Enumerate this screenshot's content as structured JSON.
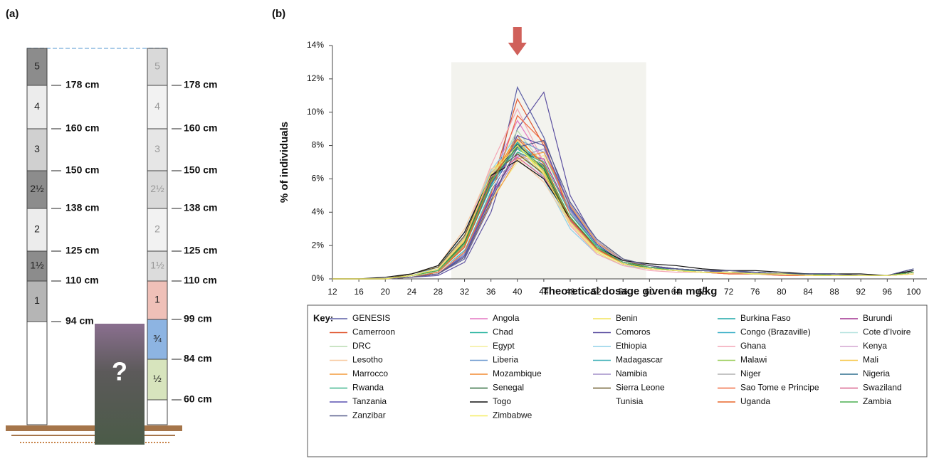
{
  "panel_a": {
    "label": "(a)",
    "left_pole": {
      "segments": [
        "5",
        "4",
        "3",
        "2½",
        "2",
        "1½",
        "1"
      ],
      "heights": [
        "178 cm",
        "160 cm",
        "150 cm",
        "138 cm",
        "125 cm",
        "110 cm",
        "94 cm"
      ]
    },
    "right_pole": {
      "segments": [
        "5",
        "4",
        "3",
        "2½",
        "2",
        "1½",
        "1",
        "¾",
        "½"
      ],
      "heights": [
        "178 cm",
        "160 cm",
        "150 cm",
        "138 cm",
        "125 cm",
        "110 cm",
        "99 cm",
        "84 cm",
        "60 cm"
      ]
    },
    "photo_label": "?"
  },
  "chart_data": {
    "type": "line",
    "panel_label": "(b)",
    "x_label": "Theoretical dosage given in mg/kg",
    "y_label": "% of individuals",
    "legend_title": "Key:",
    "x": [
      12,
      16,
      20,
      24,
      28,
      32,
      36,
      40,
      44,
      48,
      52,
      56,
      60,
      64,
      68,
      72,
      76,
      80,
      84,
      88,
      92,
      96,
      100
    ],
    "xlim": [
      12,
      102
    ],
    "xticks": [
      12,
      16,
      20,
      24,
      28,
      32,
      36,
      40,
      44,
      48,
      52,
      56,
      60,
      64,
      68,
      72,
      76,
      80,
      84,
      88,
      92,
      96,
      100
    ],
    "ylim": [
      0,
      14
    ],
    "yticks": [
      {
        "value": 0,
        "label": "0%"
      },
      {
        "value": 2,
        "label": "2%"
      },
      {
        "value": 4,
        "label": "4%"
      },
      {
        "value": 6,
        "label": "6%"
      },
      {
        "value": 8,
        "label": "8%"
      },
      {
        "value": 10,
        "label": "10%"
      },
      {
        "value": 12,
        "label": "12%"
      },
      {
        "value": 14,
        "label": "14%"
      }
    ],
    "shaded": {
      "x": [
        30,
        59.5
      ],
      "y": [
        0,
        13
      ],
      "color": "#f3f3ee"
    },
    "arrow": {
      "x": 40,
      "color": "#d0605a"
    },
    "series": [
      {
        "name": "GENESIS",
        "color": "#5b5ea6",
        "values": [
          0,
          0,
          0,
          0.1,
          0.3,
          1.2,
          4.5,
          11.5,
          8.5,
          4.2,
          2.1,
          1.0,
          0.7,
          0.6,
          0.5,
          0.4,
          0.4,
          0.3,
          0.3,
          0.3,
          0.2,
          0.2,
          0.6
        ]
      },
      {
        "name": "Angola",
        "color": "#e377c2",
        "values": [
          0,
          0,
          0,
          0.1,
          0.4,
          2.0,
          6.0,
          9.5,
          7.0,
          3.5,
          1.8,
          0.9,
          0.6,
          0.5,
          0.4,
          0.3,
          0.3,
          0.3,
          0.2,
          0.2,
          0.2,
          0.2,
          0.4
        ]
      },
      {
        "name": "Benin",
        "color": "#f2e35a",
        "values": [
          0,
          0,
          0,
          0.2,
          0.6,
          2.5,
          6.5,
          8.0,
          6.2,
          3.2,
          1.6,
          0.8,
          0.6,
          0.5,
          0.4,
          0.4,
          0.3,
          0.3,
          0.2,
          0.2,
          0.2,
          0.2,
          0.3
        ]
      },
      {
        "name": "Burkina Faso",
        "color": "#1fa7a8",
        "values": [
          0,
          0,
          0,
          0.1,
          0.5,
          2.2,
          6.0,
          8.2,
          6.8,
          3.6,
          1.8,
          0.9,
          0.7,
          0.5,
          0.4,
          0.4,
          0.3,
          0.3,
          0.3,
          0.2,
          0.2,
          0.2,
          0.4
        ]
      },
      {
        "name": "Burundi",
        "color": "#a0308f",
        "values": [
          0,
          0,
          0,
          0.1,
          0.3,
          1.5,
          5.0,
          7.5,
          7.2,
          4.0,
          2.0,
          1.0,
          0.7,
          0.6,
          0.5,
          0.4,
          0.3,
          0.3,
          0.3,
          0.2,
          0.2,
          0.2,
          0.5
        ]
      },
      {
        "name": "Camerroon",
        "color": "#e0552d",
        "values": [
          0,
          0,
          0,
          0.1,
          0.4,
          1.8,
          5.5,
          10.8,
          8.0,
          3.8,
          1.9,
          0.9,
          0.6,
          0.5,
          0.4,
          0.3,
          0.3,
          0.3,
          0.2,
          0.2,
          0.2,
          0.2,
          0.4
        ]
      },
      {
        "name": "Chad",
        "color": "#2bb5a0",
        "values": [
          0,
          0,
          0,
          0.2,
          0.5,
          2.0,
          5.8,
          7.8,
          6.6,
          3.8,
          2.0,
          1.0,
          0.7,
          0.6,
          0.5,
          0.4,
          0.3,
          0.3,
          0.3,
          0.2,
          0.2,
          0.2,
          0.4
        ]
      },
      {
        "name": "Comoros",
        "color": "#5b4fa0",
        "values": [
          0,
          0,
          0,
          0.1,
          0.2,
          1.0,
          4.0,
          9.0,
          11.2,
          5.0,
          2.2,
          1.1,
          0.8,
          0.6,
          0.5,
          0.5,
          0.4,
          0.3,
          0.3,
          0.3,
          0.2,
          0.2,
          0.5
        ]
      },
      {
        "name": "Congo (Brazaville)",
        "color": "#3cb0c8",
        "values": [
          0,
          0,
          0,
          0.1,
          0.4,
          1.8,
          5.6,
          8.0,
          6.9,
          3.7,
          1.9,
          0.9,
          0.7,
          0.5,
          0.4,
          0.4,
          0.3,
          0.3,
          0.2,
          0.2,
          0.2,
          0.2,
          0.4
        ]
      },
      {
        "name": "Cote d’Ivoire",
        "color": "#b7e3e0",
        "values": [
          0,
          0,
          0,
          0.2,
          0.6,
          2.4,
          6.2,
          7.6,
          6.0,
          3.4,
          1.7,
          0.9,
          0.6,
          0.5,
          0.4,
          0.4,
          0.3,
          0.3,
          0.2,
          0.2,
          0.2,
          0.2,
          0.3
        ]
      },
      {
        "name": "DRC",
        "color": "#b9dcb0",
        "values": [
          0,
          0,
          0,
          0.1,
          0.5,
          2.1,
          6.0,
          8.9,
          6.8,
          3.5,
          1.8,
          0.9,
          0.6,
          0.5,
          0.4,
          0.4,
          0.3,
          0.3,
          0.2,
          0.2,
          0.2,
          0.2,
          0.3
        ]
      },
      {
        "name": "Egypt",
        "color": "#f3ee9a",
        "values": [
          0,
          0,
          0,
          0.1,
          0.3,
          1.4,
          4.8,
          7.0,
          7.4,
          4.3,
          2.3,
          1.2,
          0.8,
          0.6,
          0.5,
          0.4,
          0.4,
          0.3,
          0.3,
          0.3,
          0.2,
          0.2,
          0.5
        ]
      },
      {
        "name": "Ethiopia",
        "color": "#8fd0e8",
        "values": [
          0,
          0,
          0,
          0.2,
          0.7,
          2.8,
          6.5,
          8.6,
          6.0,
          3.0,
          1.5,
          0.8,
          0.6,
          0.5,
          0.4,
          0.3,
          0.3,
          0.2,
          0.2,
          0.2,
          0.2,
          0.2,
          0.3
        ]
      },
      {
        "name": "Ghana",
        "color": "#f4a6b5",
        "values": [
          0,
          0,
          0,
          0.2,
          0.6,
          2.6,
          6.8,
          10.2,
          7.0,
          3.2,
          1.5,
          0.8,
          0.5,
          0.4,
          0.4,
          0.3,
          0.3,
          0.2,
          0.2,
          0.2,
          0.2,
          0.2,
          0.3
        ]
      },
      {
        "name": "Kenya",
        "color": "#d3a6d0",
        "values": [
          0,
          0,
          0,
          0.1,
          0.4,
          1.9,
          5.4,
          7.4,
          6.9,
          4.0,
          2.1,
          1.0,
          0.7,
          0.6,
          0.5,
          0.4,
          0.3,
          0.3,
          0.3,
          0.2,
          0.2,
          0.2,
          0.4
        ]
      },
      {
        "name": "Lesotho",
        "color": "#f8c9a0",
        "values": [
          0,
          0,
          0,
          0.3,
          0.8,
          3.0,
          6.6,
          7.2,
          5.8,
          3.3,
          1.7,
          0.9,
          0.6,
          0.5,
          0.4,
          0.4,
          0.3,
          0.3,
          0.2,
          0.2,
          0.2,
          0.2,
          0.3
        ]
      },
      {
        "name": "Liberia",
        "color": "#6f9bd0",
        "values": [
          0,
          0,
          0,
          0.1,
          0.3,
          1.5,
          5.2,
          8.4,
          7.6,
          4.1,
          2.0,
          1.0,
          0.7,
          0.5,
          0.5,
          0.4,
          0.3,
          0.3,
          0.3,
          0.2,
          0.2,
          0.2,
          0.5
        ]
      },
      {
        "name": "Madagascar",
        "color": "#40b0b8",
        "values": [
          0,
          0,
          0,
          0.1,
          0.4,
          1.7,
          5.3,
          8.1,
          7.0,
          3.9,
          1.9,
          1.0,
          0.7,
          0.5,
          0.4,
          0.4,
          0.3,
          0.3,
          0.2,
          0.2,
          0.2,
          0.2,
          0.4
        ]
      },
      {
        "name": "Malawi",
        "color": "#9acd5a",
        "values": [
          0,
          0,
          0,
          0.2,
          0.5,
          2.2,
          6.1,
          7.9,
          6.5,
          3.6,
          1.8,
          0.9,
          0.6,
          0.5,
          0.4,
          0.4,
          0.3,
          0.3,
          0.2,
          0.2,
          0.2,
          0.2,
          0.3
        ]
      },
      {
        "name": "Mali",
        "color": "#f7c74a",
        "values": [
          0,
          0,
          0,
          0.2,
          0.5,
          2.3,
          6.3,
          8.3,
          6.4,
          3.4,
          1.7,
          0.9,
          0.6,
          0.5,
          0.4,
          0.3,
          0.3,
          0.3,
          0.2,
          0.2,
          0.2,
          0.2,
          0.3
        ]
      },
      {
        "name": "Marrocco",
        "color": "#f39a3a",
        "values": [
          0,
          0,
          0,
          0.1,
          0.3,
          1.3,
          4.6,
          7.2,
          7.6,
          4.4,
          2.2,
          1.1,
          0.8,
          0.6,
          0.5,
          0.4,
          0.4,
          0.3,
          0.3,
          0.2,
          0.2,
          0.2,
          0.5
        ]
      },
      {
        "name": "Mozambique",
        "color": "#f28a30",
        "values": [
          0,
          0,
          0,
          0.1,
          0.4,
          2.0,
          5.9,
          8.6,
          6.7,
          3.5,
          1.8,
          0.9,
          0.6,
          0.5,
          0.4,
          0.4,
          0.3,
          0.3,
          0.2,
          0.2,
          0.2,
          0.2,
          0.4
        ]
      },
      {
        "name": "Namibia",
        "color": "#a28fc8",
        "values": [
          0,
          0,
          0,
          0.1,
          0.3,
          1.4,
          4.9,
          7.3,
          7.8,
          4.5,
          2.3,
          1.1,
          0.8,
          0.6,
          0.5,
          0.4,
          0.4,
          0.3,
          0.3,
          0.3,
          0.2,
          0.2,
          0.5
        ]
      },
      {
        "name": "Niger",
        "color": "#b0b0b0",
        "values": [
          0,
          0,
          0,
          0.2,
          0.6,
          2.5,
          6.4,
          7.7,
          6.2,
          3.4,
          1.7,
          0.9,
          0.6,
          0.5,
          0.4,
          0.4,
          0.3,
          0.3,
          0.2,
          0.2,
          0.2,
          0.2,
          0.3
        ]
      },
      {
        "name": "Nigeria",
        "color": "#2e6f8e",
        "values": [
          0,
          0,
          0,
          0.1,
          0.4,
          1.9,
          5.7,
          8.0,
          6.8,
          3.7,
          1.9,
          1.0,
          0.7,
          0.6,
          0.5,
          0.4,
          0.4,
          0.3,
          0.3,
          0.2,
          0.2,
          0.2,
          0.4
        ]
      },
      {
        "name": "Rwanda",
        "color": "#3cb48a",
        "values": [
          0,
          0,
          0,
          0.1,
          0.4,
          1.8,
          5.5,
          7.6,
          7.0,
          3.9,
          2.0,
          1.0,
          0.7,
          0.5,
          0.5,
          0.4,
          0.3,
          0.3,
          0.3,
          0.2,
          0.2,
          0.2,
          0.4
        ]
      },
      {
        "name": "Senegal",
        "color": "#2e6a3a",
        "values": [
          0,
          0,
          0,
          0.2,
          0.5,
          2.2,
          6.0,
          8.1,
          6.6,
          3.5,
          1.8,
          0.9,
          0.7,
          0.6,
          0.5,
          0.4,
          0.4,
          0.3,
          0.3,
          0.2,
          0.2,
          0.2,
          0.4
        ]
      },
      {
        "name": "Sierra Leone",
        "color": "#6b5a2a",
        "values": [
          0,
          0,
          0,
          0.3,
          0.7,
          2.6,
          6.2,
          7.5,
          6.3,
          3.6,
          1.8,
          1.0,
          0.8,
          0.6,
          0.5,
          0.4,
          0.4,
          0.3,
          0.3,
          0.2,
          0.2,
          0.2,
          0.4
        ]
      },
      {
        "name": "Sao Tome e Principe",
        "color": "#f06a40",
        "values": [
          0,
          0,
          0,
          0.1,
          0.3,
          1.6,
          5.1,
          9.8,
          8.2,
          3.8,
          1.8,
          0.9,
          0.6,
          0.5,
          0.4,
          0.3,
          0.3,
          0.2,
          0.2,
          0.2,
          0.2,
          0.2,
          0.3
        ]
      },
      {
        "name": "Swaziland",
        "color": "#d8608a",
        "values": [
          0,
          0,
          0,
          0.2,
          0.6,
          2.4,
          6.1,
          7.3,
          6.1,
          3.5,
          1.8,
          0.9,
          0.6,
          0.5,
          0.4,
          0.4,
          0.3,
          0.3,
          0.2,
          0.2,
          0.2,
          0.2,
          0.3
        ]
      },
      {
        "name": "Tanzania",
        "color": "#5850b0",
        "values": [
          0,
          0,
          0,
          0.1,
          0.3,
          1.4,
          4.9,
          8.6,
          8.0,
          4.3,
          2.1,
          1.0,
          0.7,
          0.6,
          0.5,
          0.4,
          0.4,
          0.3,
          0.3,
          0.3,
          0.2,
          0.2,
          0.5
        ]
      },
      {
        "name": "Togo",
        "color": "#111111",
        "values": [
          0,
          0,
          0.1,
          0.3,
          0.8,
          2.8,
          6.2,
          7.1,
          6.0,
          3.6,
          1.9,
          1.1,
          0.9,
          0.8,
          0.6,
          0.5,
          0.5,
          0.4,
          0.3,
          0.3,
          0.3,
          0.2,
          0.5
        ]
      },
      {
        "name": "Tunisia",
        "color": "#ffffff",
        "values": [
          0,
          0,
          0,
          0.1,
          0.4,
          1.8,
          5.4,
          7.7,
          6.9,
          3.8,
          1.9,
          1.0,
          0.7,
          0.5,
          0.4,
          0.4,
          0.3,
          0.3,
          0.2,
          0.2,
          0.2,
          0.2,
          0.4
        ]
      },
      {
        "name": "Uganda",
        "color": "#e8662a",
        "values": [
          0,
          0,
          0,
          0.1,
          0.4,
          1.9,
          5.8,
          8.4,
          6.9,
          3.6,
          1.8,
          0.9,
          0.6,
          0.5,
          0.4,
          0.4,
          0.3,
          0.3,
          0.2,
          0.2,
          0.2,
          0.2,
          0.4
        ]
      },
      {
        "name": "Zambia",
        "color": "#4caf50",
        "values": [
          0,
          0,
          0,
          0.2,
          0.5,
          2.1,
          5.9,
          7.9,
          6.7,
          3.7,
          1.9,
          1.0,
          0.7,
          0.5,
          0.4,
          0.4,
          0.3,
          0.3,
          0.3,
          0.2,
          0.2,
          0.2,
          0.4
        ]
      },
      {
        "name": "Zanzibar",
        "color": "#555a8a",
        "values": [
          0,
          0,
          0,
          0.1,
          0.3,
          1.3,
          4.7,
          7.9,
          8.3,
          4.6,
          2.4,
          1.2,
          0.8,
          0.6,
          0.5,
          0.5,
          0.4,
          0.3,
          0.3,
          0.3,
          0.2,
          0.2,
          0.6
        ]
      },
      {
        "name": "Zimbabwe",
        "color": "#f4ee60",
        "values": [
          0,
          0,
          0,
          0.2,
          0.6,
          2.4,
          6.3,
          8.0,
          6.3,
          3.4,
          1.7,
          0.9,
          0.6,
          0.5,
          0.4,
          0.4,
          0.3,
          0.3,
          0.2,
          0.2,
          0.2,
          0.2,
          0.3
        ]
      }
    ]
  }
}
